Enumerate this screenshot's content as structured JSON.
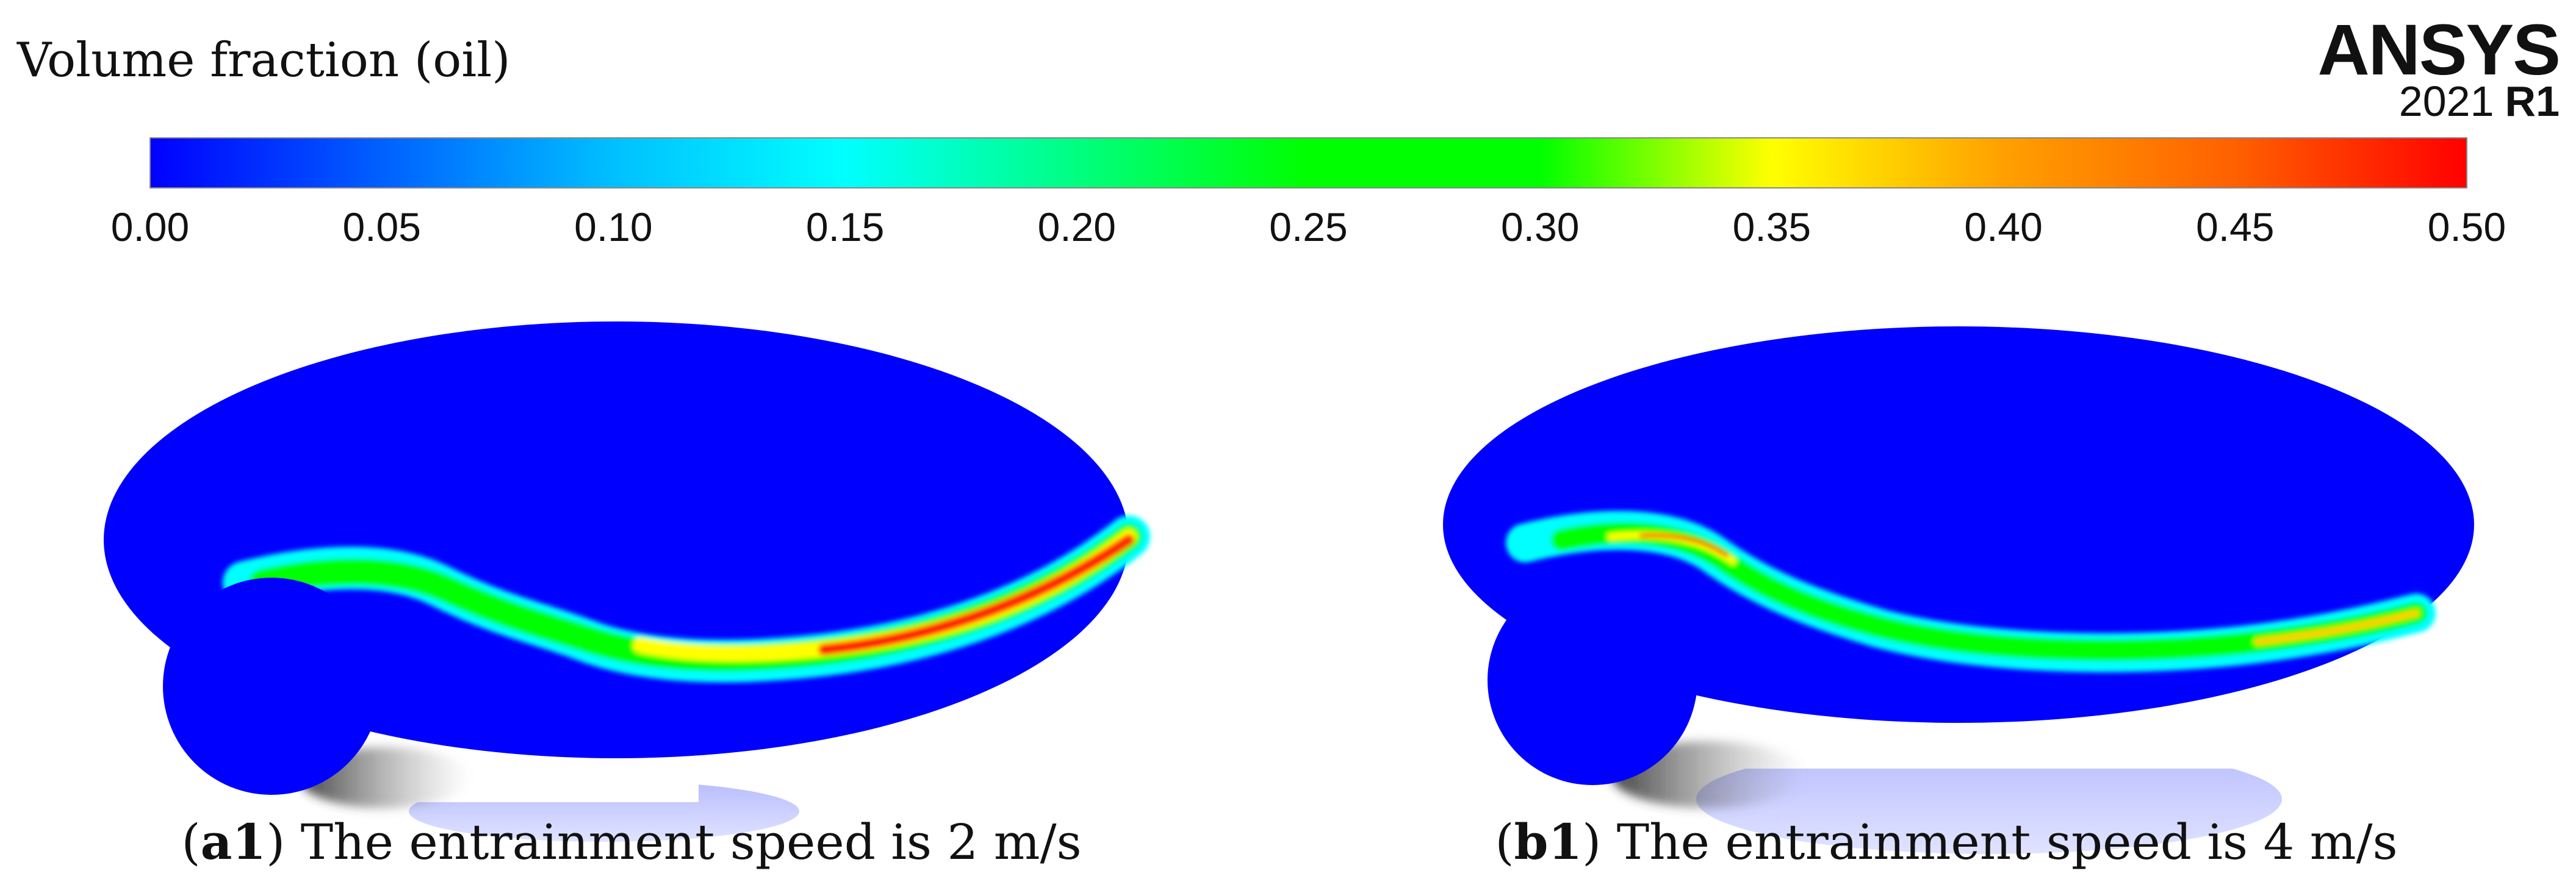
{
  "legend": {
    "title": "Volume fraction (oil)",
    "ticks": [
      "0.00",
      "0.05",
      "0.10",
      "0.15",
      "0.20",
      "0.25",
      "0.30",
      "0.35",
      "0.40",
      "0.45",
      "0.50"
    ],
    "min": 0.0,
    "max": 0.5,
    "colormap": [
      "#0000ff",
      "#0060ff",
      "#00c0ff",
      "#00ffff",
      "#00ff80",
      "#00ff00",
      "#00ff00",
      "#ffff00",
      "#ffa000",
      "#ff6000",
      "#ff0000"
    ]
  },
  "logo": {
    "brand": "ANSYS",
    "year": "2021",
    "release": "R1"
  },
  "panels": [
    {
      "label": "a1",
      "caption": "The entrainment speed is 2 m/s"
    },
    {
      "label": "b1",
      "caption": "The entrainment speed is 4 m/s"
    }
  ],
  "colors": {
    "background": "#0000ff",
    "band_low": "#00ffff",
    "band_mid": "#00ff00",
    "band_high": "#ffff00",
    "band_peak": "#ff0000",
    "shadow": "#b8b8ff"
  }
}
